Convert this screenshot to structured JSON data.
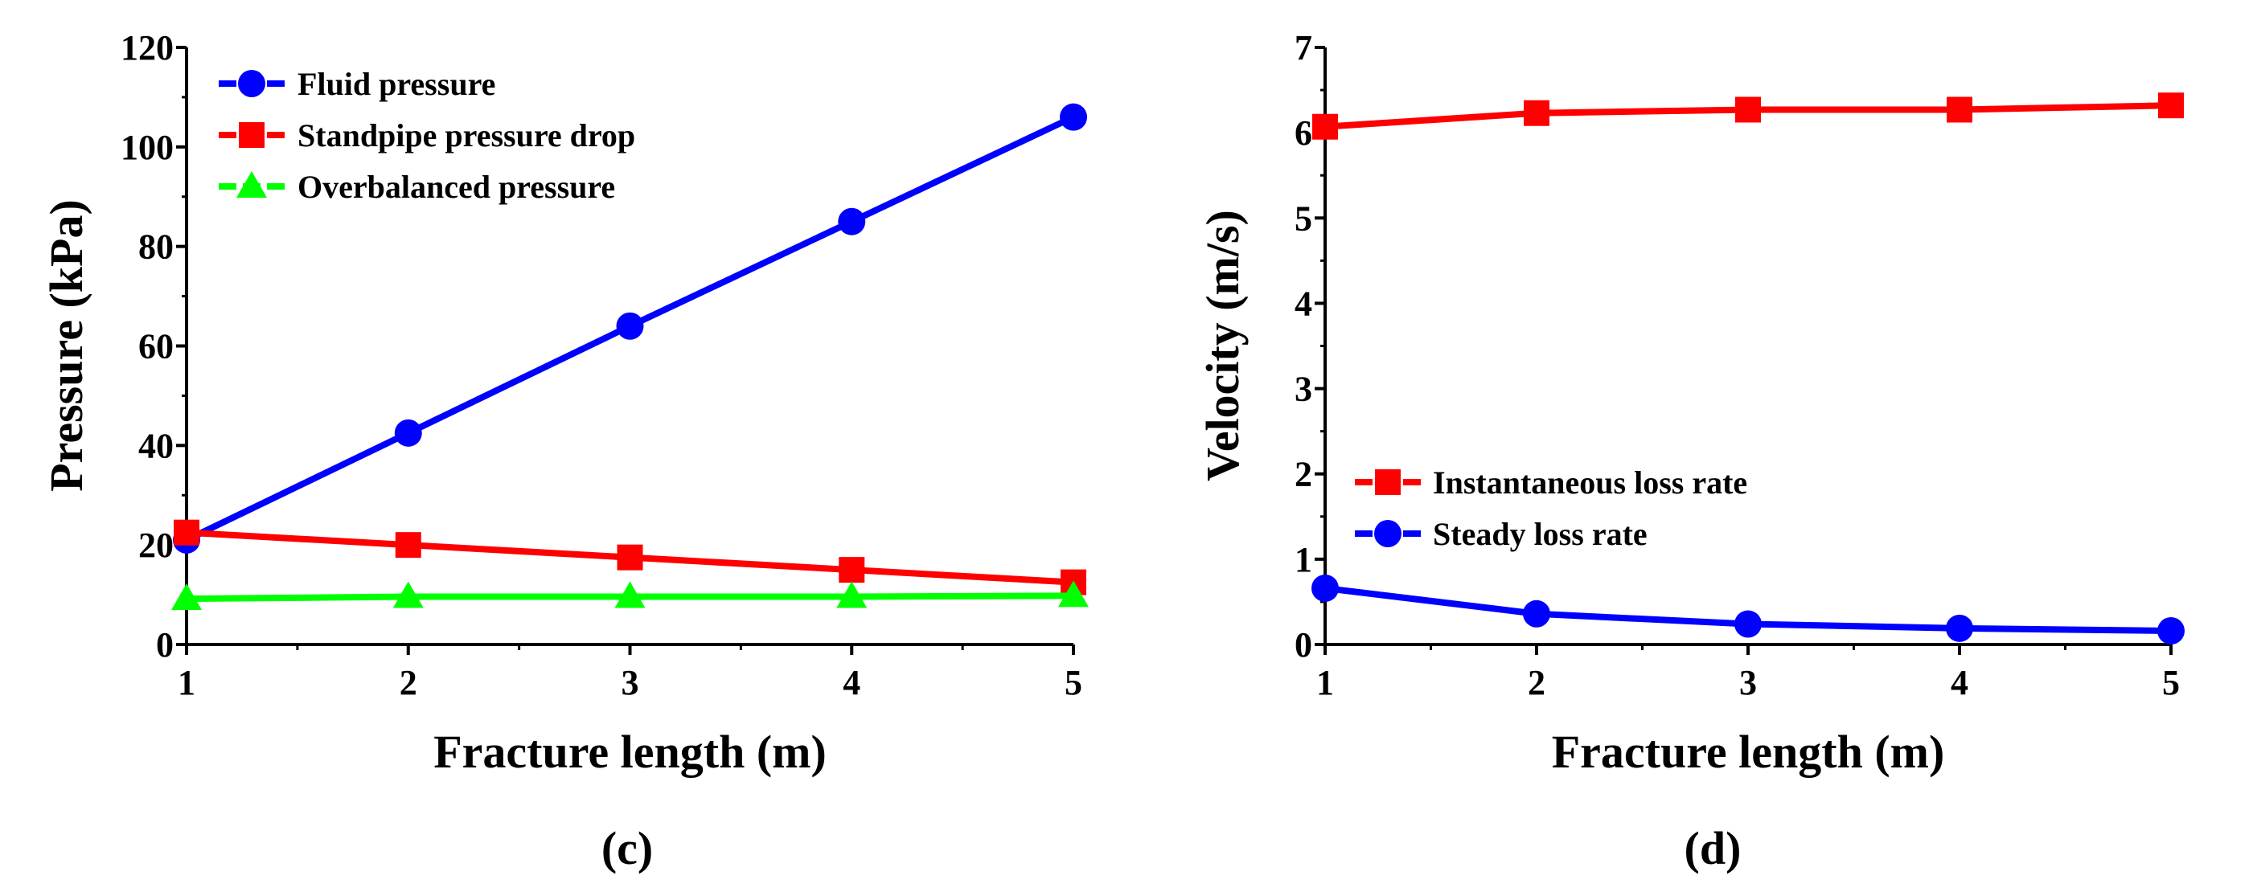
{
  "chart_data": [
    {
      "type": "line",
      "panel_label": "(c)",
      "xlabel": "Fracture length (m)",
      "ylabel": "Pressure (kPa)",
      "xlim": [
        1,
        5
      ],
      "ylim": [
        0,
        120
      ],
      "xticks": [
        1,
        2,
        3,
        4,
        5
      ],
      "yticks": [
        0,
        20,
        40,
        60,
        80,
        100,
        120
      ],
      "x_minor_step": 0.5,
      "y_minor_step": 10,
      "grid": false,
      "legend_position": "top-left",
      "x": [
        1,
        2,
        3,
        4,
        5
      ],
      "series": [
        {
          "name": "Fluid pressure",
          "marker": "circle",
          "color": "#0000ff",
          "values": [
            21,
            42.5,
            64,
            85,
            106
          ]
        },
        {
          "name": "Standpipe pressure drop",
          "marker": "square",
          "color": "#ff0000",
          "values": [
            22.5,
            20,
            17.5,
            15,
            12.5
          ]
        },
        {
          "name": "Overbalanced pressure",
          "marker": "triangle",
          "color": "#00ff00",
          "values": [
            9.2,
            9.6,
            9.6,
            9.6,
            9.8
          ]
        }
      ]
    },
    {
      "type": "line",
      "panel_label": "(d)",
      "xlabel": "Fracture length (m)",
      "ylabel": "Velocity (m/s)",
      "xlim": [
        1,
        5
      ],
      "ylim": [
        0,
        7
      ],
      "xticks": [
        1,
        2,
        3,
        4,
        5
      ],
      "yticks": [
        0,
        1,
        2,
        3,
        4,
        5,
        6,
        7
      ],
      "x_minor_step": 0.5,
      "y_minor_step": 0.5,
      "grid": false,
      "legend_position": "lower-left",
      "x": [
        1,
        2,
        3,
        4,
        5
      ],
      "series": [
        {
          "name": "Instantaneous loss rate",
          "marker": "square",
          "color": "#ff0000",
          "values": [
            6.07,
            6.23,
            6.27,
            6.27,
            6.32
          ]
        },
        {
          "name": "Steady loss rate",
          "marker": "circle",
          "color": "#0000ff",
          "values": [
            0.66,
            0.36,
            0.24,
            0.19,
            0.16
          ]
        }
      ]
    }
  ]
}
